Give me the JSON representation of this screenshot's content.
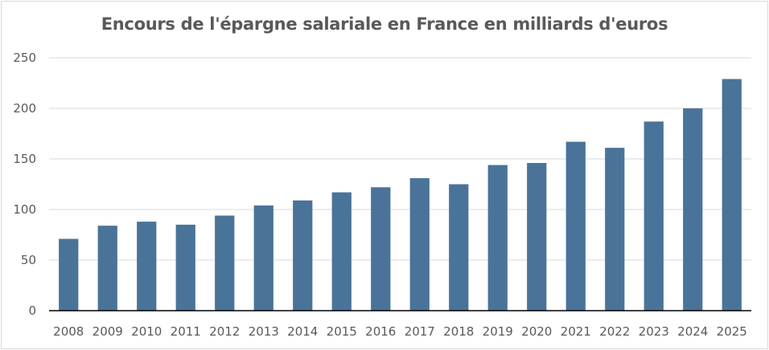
{
  "chart_data": {
    "type": "bar",
    "title": "Encours de l'épargne salariale en France en milliards d'euros",
    "xlabel": "",
    "ylabel": "",
    "categories": [
      "2008",
      "2009",
      "2010",
      "2011",
      "2012",
      "2013",
      "2014",
      "2015",
      "2016",
      "2017",
      "2018",
      "2019",
      "2020",
      "2021",
      "2022",
      "2023",
      "2024",
      "2025"
    ],
    "values": [
      71,
      84,
      88,
      85,
      94,
      104,
      109,
      117,
      122,
      131,
      125,
      144,
      146,
      167,
      161,
      187,
      200,
      229
    ],
    "ylim": [
      0,
      250
    ],
    "yticks": [
      "0",
      "50",
      "100",
      "150",
      "200",
      "250"
    ],
    "grid": true,
    "legend": "none",
    "bar_color": "#4A7399",
    "gridline_color": "#d9d9d9",
    "axis_color": "#000000",
    "text_color": "#595959"
  }
}
